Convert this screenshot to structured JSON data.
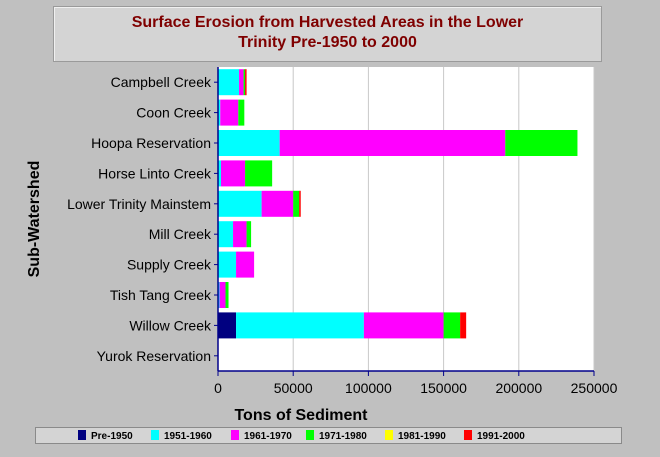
{
  "title_line1": "Surface Erosion from Harvested Areas in the Lower",
  "title_line2": "Trinity Pre-1950 to 2000",
  "chart_data": {
    "type": "bar",
    "orientation": "horizontal",
    "stacked": true,
    "xlabel": "Tons of Sediment",
    "ylabel": "Sub-Watershed",
    "xlim": [
      0,
      250000
    ],
    "xticks": [
      0,
      50000,
      100000,
      150000,
      200000,
      250000
    ],
    "grid": true,
    "legend_position": "bottom",
    "categories": [
      "Campbell Creek",
      "Coon Creek",
      "Hoopa Reservation",
      "Horse Linto Creek",
      "Lower Trinity Mainstem",
      "Mill Creek",
      "Supply Creek",
      "Tish Tang Creek",
      "Willow Creek",
      "Yurok Reservation"
    ],
    "series": [
      {
        "name": "Pre-1950",
        "color": "#000080",
        "values": [
          0,
          0,
          0,
          0,
          0,
          0,
          0,
          0,
          12000,
          0
        ]
      },
      {
        "name": "1951-1960",
        "color": "#00ffff",
        "values": [
          14000,
          1500,
          41000,
          2000,
          29000,
          10000,
          12000,
          1000,
          85000,
          0
        ]
      },
      {
        "name": "1961-1970",
        "color": "#ff00ff",
        "values": [
          3000,
          12000,
          150000,
          16000,
          21000,
          9000,
          12000,
          4000,
          53000,
          0
        ]
      },
      {
        "name": "1971-1980",
        "color": "#00ff00",
        "values": [
          1000,
          4000,
          48000,
          18000,
          4000,
          3000,
          0,
          2000,
          11000,
          0
        ]
      },
      {
        "name": "1981-1990",
        "color": "#ffff00",
        "values": [
          0,
          0,
          0,
          0,
          0,
          0,
          0,
          0,
          0,
          0
        ]
      },
      {
        "name": "1991-2000",
        "color": "#ff0000",
        "values": [
          1000,
          0,
          0,
          0,
          1000,
          0,
          0,
          0,
          4000,
          0
        ]
      }
    ]
  }
}
